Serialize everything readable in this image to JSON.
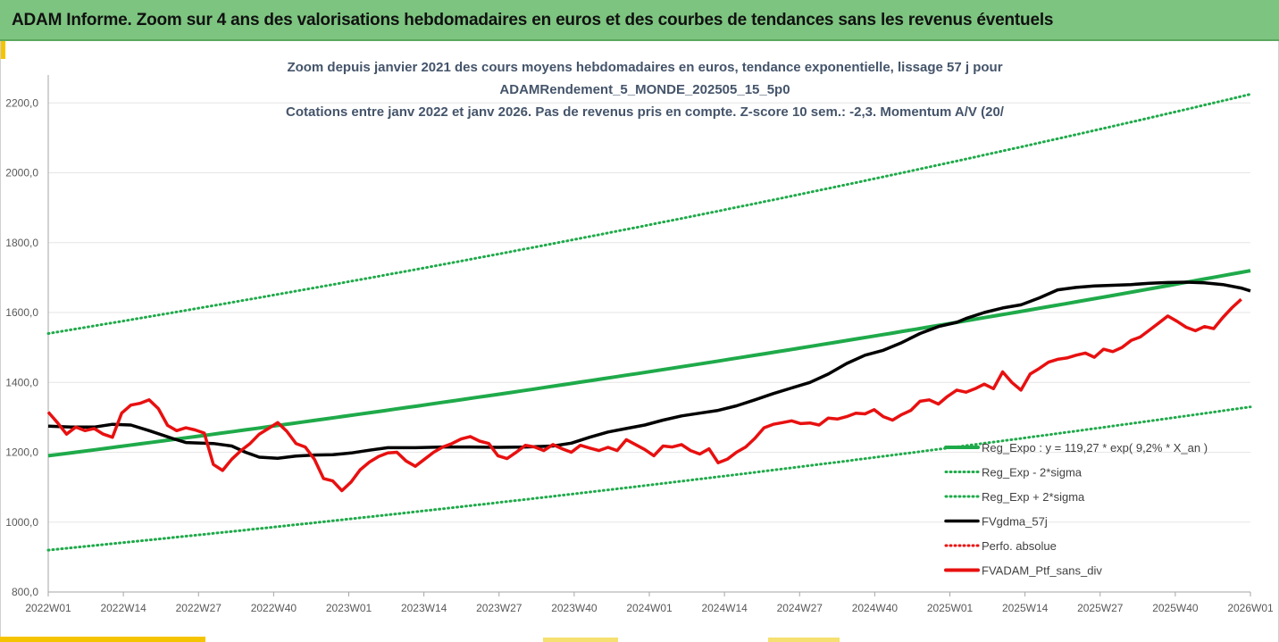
{
  "header": {
    "title": "ADAM Informe. Zoom sur 4 ans des valorisations hebdomadaires en euros et des courbes de tendances sans les revenus éventuels"
  },
  "colors": {
    "header_bg": "#7cc47f",
    "accent": "#f5c400",
    "trend": "#1faa4a",
    "band": "#1faa4a",
    "smooth": "#000000",
    "portfolio": "#e81010"
  },
  "chart_data": {
    "type": "line",
    "title_lines": [
      "Zoom depuis janvier 2021 des cours moyens hebdomadaires  en euros, tendance exponentielle, lissage 57 j pour",
      "ADAMRendement_5_MONDE_202505_15_5p0",
      "Cotations entre janv 2022 et janv 2026. Pas de revenus pris en compte. Z-score 10 sem.: -2,3. Momentum A/V (20/"
    ],
    "x_ticks": [
      "2022W01",
      "2022W14",
      "2022W27",
      "2022W40",
      "2023W01",
      "2023W14",
      "2023W27",
      "2023W40",
      "2024W01",
      "2024W14",
      "2024W27",
      "2024W40",
      "2025W01",
      "2025W14",
      "2025W27",
      "2025W40",
      "2026W01"
    ],
    "y_ticks": [
      "800,0",
      "1000,0",
      "1200,0",
      "1400,0",
      "1600,0",
      "1800,0",
      "2000,0",
      "2200,0"
    ],
    "ylim": [
      800,
      2280
    ],
    "xlim": [
      0,
      208
    ],
    "legend": [
      {
        "key": "trend",
        "label": "Reg_Expo : y = 119,27 * exp( 9,2% *  X_an )"
      },
      {
        "key": "lower",
        "label": "Reg_Exp - 2*sigma"
      },
      {
        "key": "upper",
        "label": "Reg_Exp + 2*sigma"
      },
      {
        "key": "smooth",
        "label": "FVgdma_57j"
      },
      {
        "key": "absolute",
        "label": "Perfo. absolue"
      },
      {
        "key": "portfolio",
        "label": "FVADAM_Ptf_sans_div"
      }
    ],
    "series": {
      "trend": {
        "name": "Reg_Expo",
        "start": 1190,
        "end": 1720,
        "x0": 0,
        "x1": 208
      },
      "upper": {
        "name": "Reg_Exp + 2*sigma",
        "start": 1540,
        "end": 2225,
        "x0": 0,
        "x1": 208
      },
      "lower": {
        "name": "Reg_Exp - 2*sigma",
        "start": 920,
        "end": 1330,
        "x0": 0,
        "x1": 208
      },
      "smooth": {
        "name": "FVgdma_57j",
        "points": [
          [
            0,
            1275
          ],
          [
            5,
            1272
          ],
          [
            10,
            1272
          ],
          [
            14,
            1280
          ],
          [
            18,
            1278
          ],
          [
            22,
            1262
          ],
          [
            27,
            1240
          ],
          [
            30,
            1228
          ],
          [
            36,
            1225
          ],
          [
            40,
            1218
          ],
          [
            43,
            1200
          ],
          [
            46,
            1186
          ],
          [
            50,
            1183
          ],
          [
            54,
            1189
          ],
          [
            58,
            1192
          ],
          [
            62,
            1193
          ],
          [
            66,
            1198
          ],
          [
            70,
            1206
          ],
          [
            74,
            1213
          ],
          [
            80,
            1213
          ],
          [
            86,
            1215
          ],
          [
            92,
            1215
          ],
          [
            98,
            1214
          ],
          [
            104,
            1215
          ],
          [
            110,
            1218
          ],
          [
            114,
            1226
          ],
          [
            118,
            1243
          ],
          [
            122,
            1258
          ],
          [
            126,
            1268
          ],
          [
            130,
            1278
          ],
          [
            134,
            1292
          ],
          [
            138,
            1304
          ],
          [
            142,
            1312
          ],
          [
            146,
            1320
          ],
          [
            150,
            1333
          ],
          [
            154,
            1350
          ],
          [
            158,
            1368
          ],
          [
            162,
            1384
          ],
          [
            166,
            1400
          ],
          [
            170,
            1424
          ],
          [
            174,
            1454
          ],
          [
            178,
            1478
          ],
          [
            182,
            1492
          ],
          [
            186,
            1514
          ],
          [
            190,
            1540
          ],
          [
            194,
            1560
          ],
          [
            198,
            1572
          ],
          [
            200,
            1583
          ],
          [
            204,
            1600
          ],
          [
            208,
            1613
          ],
          [
            212,
            1622
          ],
          [
            216,
            1642
          ],
          [
            220,
            1665
          ],
          [
            224,
            1672
          ],
          [
            228,
            1676
          ],
          [
            232,
            1678
          ],
          [
            236,
            1680
          ],
          [
            240,
            1684
          ],
          [
            244,
            1686
          ],
          [
            248,
            1687
          ],
          [
            252,
            1685
          ],
          [
            256,
            1680
          ],
          [
            260,
            1670
          ],
          [
            262,
            1662
          ]
        ]
      },
      "portfolio": {
        "name": "FVADAM_Ptf_sans_div",
        "points": [
          [
            0,
            1315
          ],
          [
            2,
            1285
          ],
          [
            4,
            1252
          ],
          [
            6,
            1272
          ],
          [
            8,
            1262
          ],
          [
            10,
            1268
          ],
          [
            12,
            1252
          ],
          [
            14,
            1243
          ],
          [
            16,
            1312
          ],
          [
            18,
            1335
          ],
          [
            20,
            1340
          ],
          [
            22,
            1350
          ],
          [
            24,
            1325
          ],
          [
            26,
            1277
          ],
          [
            28,
            1262
          ],
          [
            30,
            1270
          ],
          [
            32,
            1264
          ],
          [
            34,
            1255
          ],
          [
            36,
            1165
          ],
          [
            38,
            1148
          ],
          [
            40,
            1180
          ],
          [
            42,
            1205
          ],
          [
            44,
            1225
          ],
          [
            46,
            1252
          ],
          [
            48,
            1268
          ],
          [
            50,
            1285
          ],
          [
            52,
            1260
          ],
          [
            54,
            1225
          ],
          [
            56,
            1215
          ],
          [
            58,
            1180
          ],
          [
            60,
            1125
          ],
          [
            62,
            1118
          ],
          [
            64,
            1090
          ],
          [
            66,
            1115
          ],
          [
            68,
            1150
          ],
          [
            70,
            1172
          ],
          [
            72,
            1188
          ],
          [
            74,
            1198
          ],
          [
            76,
            1200
          ],
          [
            78,
            1175
          ],
          [
            80,
            1160
          ],
          [
            82,
            1180
          ],
          [
            84,
            1200
          ],
          [
            86,
            1215
          ],
          [
            88,
            1225
          ],
          [
            90,
            1238
          ],
          [
            92,
            1245
          ],
          [
            94,
            1232
          ],
          [
            96,
            1225
          ],
          [
            98,
            1190
          ],
          [
            100,
            1182
          ],
          [
            102,
            1200
          ],
          [
            104,
            1220
          ],
          [
            106,
            1215
          ],
          [
            108,
            1205
          ],
          [
            110,
            1222
          ],
          [
            112,
            1210
          ],
          [
            114,
            1200
          ],
          [
            116,
            1220
          ],
          [
            118,
            1212
          ],
          [
            120,
            1205
          ],
          [
            122,
            1214
          ],
          [
            124,
            1205
          ],
          [
            126,
            1236
          ],
          [
            128,
            1222
          ],
          [
            130,
            1208
          ],
          [
            132,
            1190
          ],
          [
            134,
            1218
          ],
          [
            136,
            1215
          ],
          [
            138,
            1222
          ],
          [
            140,
            1205
          ],
          [
            142,
            1195
          ],
          [
            144,
            1210
          ],
          [
            146,
            1170
          ],
          [
            148,
            1180
          ],
          [
            150,
            1200
          ],
          [
            152,
            1215
          ],
          [
            154,
            1240
          ],
          [
            156,
            1270
          ],
          [
            158,
            1280
          ],
          [
            160,
            1285
          ],
          [
            162,
            1290
          ],
          [
            164,
            1282
          ],
          [
            166,
            1284
          ],
          [
            168,
            1278
          ],
          [
            170,
            1298
          ],
          [
            172,
            1295
          ],
          [
            174,
            1302
          ],
          [
            176,
            1312
          ],
          [
            178,
            1310
          ],
          [
            180,
            1322
          ],
          [
            182,
            1302
          ],
          [
            184,
            1292
          ],
          [
            186,
            1308
          ],
          [
            188,
            1320
          ],
          [
            190,
            1346
          ],
          [
            192,
            1350
          ],
          [
            194,
            1338
          ],
          [
            196,
            1360
          ],
          [
            198,
            1378
          ],
          [
            200,
            1372
          ],
          [
            202,
            1382
          ],
          [
            204,
            1395
          ],
          [
            206,
            1382
          ],
          [
            208,
            1430
          ],
          [
            210,
            1400
          ],
          [
            212,
            1378
          ],
          [
            214,
            1424
          ],
          [
            216,
            1440
          ],
          [
            218,
            1458
          ],
          [
            220,
            1466
          ],
          [
            222,
            1470
          ],
          [
            224,
            1478
          ],
          [
            226,
            1484
          ],
          [
            228,
            1472
          ],
          [
            230,
            1495
          ],
          [
            232,
            1488
          ],
          [
            234,
            1500
          ],
          [
            236,
            1520
          ],
          [
            238,
            1530
          ],
          [
            240,
            1550
          ],
          [
            242,
            1570
          ],
          [
            244,
            1590
          ],
          [
            246,
            1575
          ],
          [
            248,
            1558
          ],
          [
            250,
            1548
          ],
          [
            252,
            1560
          ],
          [
            254,
            1554
          ],
          [
            256,
            1586
          ],
          [
            258,
            1614
          ],
          [
            260,
            1638
          ]
        ]
      }
    }
  }
}
